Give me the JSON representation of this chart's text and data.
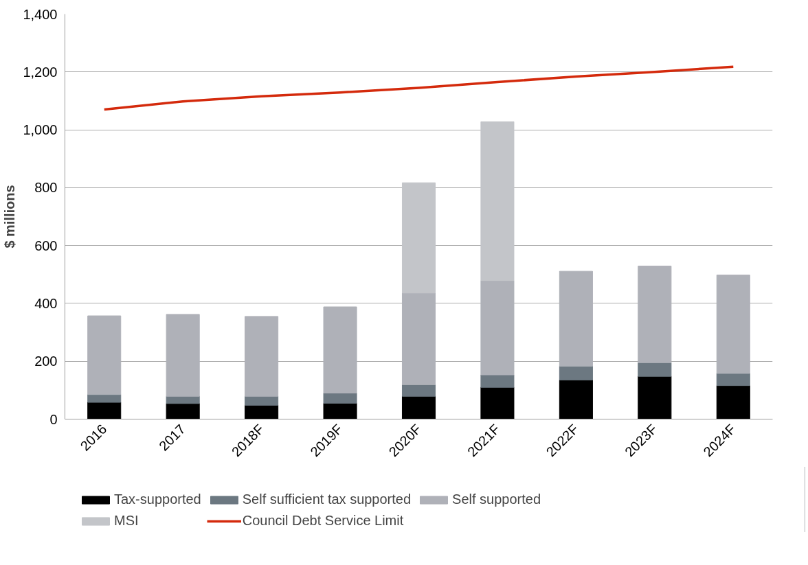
{
  "chart_data": {
    "type": "bar",
    "stacked": true,
    "ylabel": "$ millions",
    "categories": [
      "2016",
      "2017",
      "2018F",
      "2019F",
      "2020F",
      "2021F",
      "2022F",
      "2023F",
      "2024F"
    ],
    "series": [
      {
        "name": "Tax-supported",
        "color": "#000000",
        "values": [
          58,
          54,
          48,
          55,
          79,
          110,
          135,
          148,
          116
        ]
      },
      {
        "name": "Self sufficient tax supported",
        "color": "#6c7881",
        "values": [
          27,
          25,
          31,
          35,
          40,
          43,
          48,
          47,
          42
        ]
      },
      {
        "name": "Self supported",
        "color": "#afb1b8",
        "values": [
          272,
          283,
          276,
          298,
          317,
          326,
          328,
          334,
          340
        ]
      },
      {
        "name": "MSI",
        "color": "#c3c5c9",
        "values": [
          null,
          null,
          null,
          null,
          381,
          549,
          null,
          null,
          null
        ]
      },
      {
        "name": "Council Debt Service Limit",
        "type": "line",
        "color": "#d42a0c",
        "values": [
          1070,
          1098,
          1116,
          1129,
          1145,
          1165,
          1184,
          1200,
          1218
        ]
      }
    ],
    "ylim": [
      0,
      1400
    ],
    "yticks": [
      0,
      {
        "value": 200,
        "label": "200"
      },
      {
        "value": 400,
        "label": "400"
      },
      {
        "value": 600,
        "label": "600"
      },
      {
        "value": 800,
        "label": "800"
      },
      {
        "value": 1000,
        "label": "1,000"
      },
      {
        "value": 1200,
        "label": "1,200"
      },
      {
        "value": 1400,
        "label": "1,400"
      }
    ],
    "grid": "y",
    "legend": "bottom"
  }
}
